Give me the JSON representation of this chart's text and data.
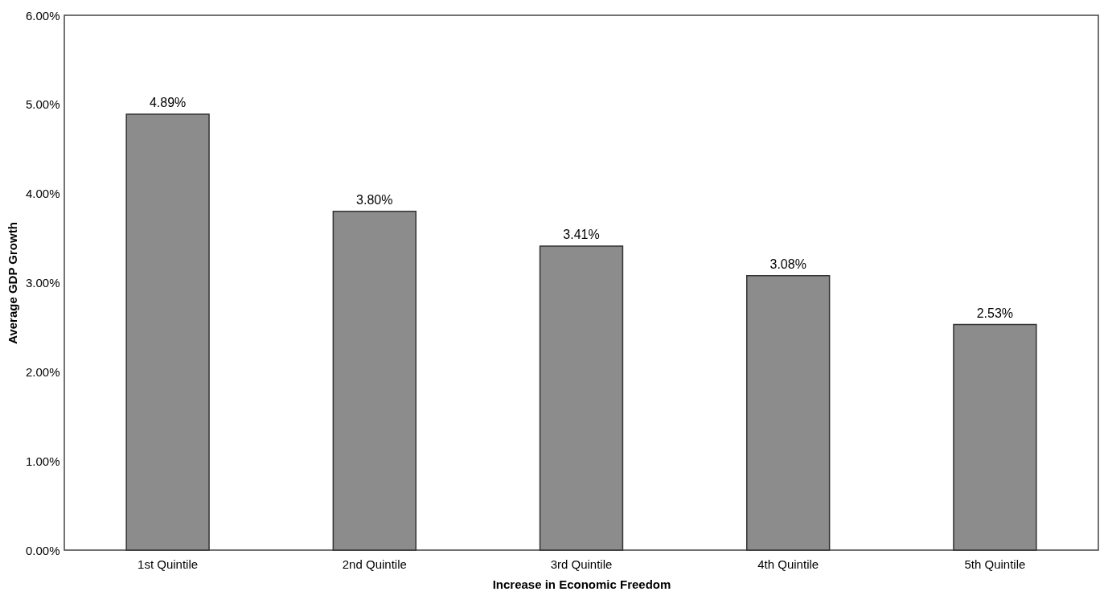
{
  "chart_data": {
    "type": "bar",
    "xlabel": "Increase in Economic Freedom",
    "ylabel": "Average GDP Growth",
    "categories": [
      "1st Quintile",
      "2nd Quintile",
      "3rd Quintile",
      "4th Quintile",
      "5th Quintile"
    ],
    "values": [
      4.89,
      3.8,
      3.41,
      3.08,
      2.53
    ],
    "value_labels": [
      "4.89%",
      "3.80%",
      "3.41%",
      "3.08%",
      "2.53%"
    ],
    "color": "#8c8c8c",
    "ylim": [
      0,
      6
    ],
    "yticks": [
      {
        "value": 0,
        "label": "0.00%"
      },
      {
        "value": 1,
        "label": "1.00%"
      },
      {
        "value": 2,
        "label": "2.00%"
      },
      {
        "value": 3,
        "label": "3.00%"
      },
      {
        "value": 4,
        "label": "4.00%"
      },
      {
        "value": 5,
        "label": "5.00%"
      },
      {
        "value": 6,
        "label": "6.00%"
      }
    ],
    "grid": false
  }
}
